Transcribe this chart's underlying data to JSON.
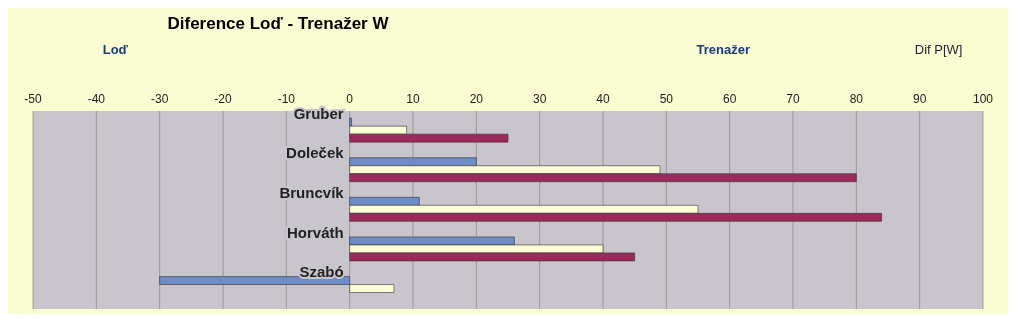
{
  "chart_data": {
    "type": "bar",
    "orientation": "horizontal",
    "title": "Diference Loď - Trenažer  W",
    "annotations": [
      "Loď",
      "Trenažer",
      "Dif P[W]"
    ],
    "categories": [
      "Gruber",
      "Doleček",
      "Bruncvík",
      "Horváth",
      "Szabó"
    ],
    "series": [
      {
        "color": "#6d8cc8",
        "values": [
          0.3,
          20,
          11,
          26,
          -30
        ]
      },
      {
        "color": "#fbfbd6",
        "values": [
          9,
          49,
          55,
          40,
          7
        ]
      },
      {
        "color": "#9c2a5c",
        "values": [
          25,
          80,
          84,
          45,
          null
        ]
      }
    ],
    "xlim": [
      -50,
      100
    ],
    "xticks": [
      -50,
      -40,
      -30,
      -20,
      -10,
      0,
      10,
      20,
      30,
      40,
      50,
      60,
      70,
      80,
      90,
      100
    ],
    "grid": "x",
    "legend": false
  }
}
